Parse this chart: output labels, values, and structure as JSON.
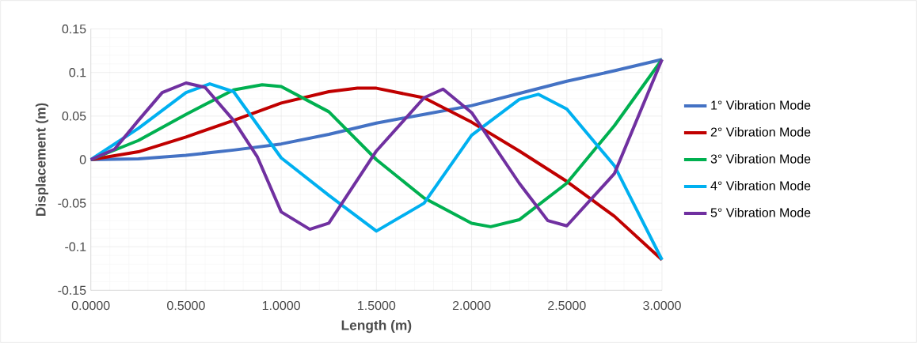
{
  "chart_data": {
    "type": "line",
    "xlabel": "Length (m)",
    "ylabel": "Displacement (m)",
    "xlim": [
      0,
      3
    ],
    "ylim": [
      -0.15,
      0.15
    ],
    "xticks": [
      {
        "value": 0,
        "label": "0.0000"
      },
      {
        "value": 0.5,
        "label": "0.5000"
      },
      {
        "value": 1,
        "label": "1.0000"
      },
      {
        "value": 1.5,
        "label": "1.5000"
      },
      {
        "value": 2,
        "label": "2.0000"
      },
      {
        "value": 2.5,
        "label": "2.5000"
      },
      {
        "value": 3,
        "label": "3.0000"
      }
    ],
    "yticks": [
      -0.15,
      -0.1,
      -0.05,
      0,
      0.05,
      0.1,
      0.15
    ],
    "grid": true,
    "legend": "right",
    "marker": "none",
    "line_style": "solid",
    "series": [
      {
        "name": "1° Vibration Mode",
        "color": "#4472c4",
        "x": [
          0,
          0.25,
          0.5,
          0.75,
          1,
          1.25,
          1.5,
          1.75,
          2,
          2.25,
          2.5,
          2.75,
          3
        ],
        "values": [
          0,
          0.001,
          0.005,
          0.011,
          0.018,
          0.029,
          0.042,
          0.052,
          0.062,
          0.076,
          0.09,
          0.102,
          0.115
        ]
      },
      {
        "name": "2° Vibration Mode",
        "color": "#c00000",
        "x": [
          0,
          0.25,
          0.5,
          0.75,
          1,
          1.25,
          1.4,
          1.5,
          1.75,
          2,
          2.25,
          2.5,
          2.75,
          3
        ],
        "values": [
          0,
          0.009,
          0.026,
          0.045,
          0.065,
          0.078,
          0.082,
          0.082,
          0.071,
          0.043,
          0.01,
          -0.025,
          -0.065,
          -0.115
        ]
      },
      {
        "name": "3° Vibration Mode",
        "color": "#00b050",
        "x": [
          0,
          0.25,
          0.5,
          0.75,
          0.9,
          1,
          1.25,
          1.5,
          1.75,
          2,
          2.1,
          2.25,
          2.5,
          2.75,
          3
        ],
        "values": [
          0,
          0.022,
          0.052,
          0.08,
          0.086,
          0.084,
          0.055,
          0,
          -0.044,
          -0.073,
          -0.077,
          -0.069,
          -0.027,
          0.039,
          0.115
        ]
      },
      {
        "name": "4° Vibration Mode",
        "color": "#00b0f0",
        "x": [
          0,
          0.25,
          0.5,
          0.625,
          0.75,
          1,
          1.25,
          1.5,
          1.75,
          2,
          2.25,
          2.35,
          2.5,
          2.75,
          3
        ],
        "values": [
          0,
          0.036,
          0.077,
          0.087,
          0.078,
          0.002,
          -0.041,
          -0.082,
          -0.05,
          0.028,
          0.069,
          0.075,
          0.058,
          -0.007,
          -0.115
        ]
      },
      {
        "name": "5° Vibration Mode",
        "color": "#7030a0",
        "x": [
          0,
          0.125,
          0.25,
          0.375,
          0.5,
          0.6,
          0.75,
          0.875,
          1,
          1.15,
          1.25,
          1.5,
          1.75,
          1.85,
          2,
          2.25,
          2.4,
          2.5,
          2.75,
          3
        ],
        "values": [
          0,
          0.012,
          0.045,
          0.077,
          0.088,
          0.083,
          0.045,
          0.003,
          -0.06,
          -0.08,
          -0.073,
          0.01,
          0.071,
          0.081,
          0.054,
          -0.027,
          -0.07,
          -0.076,
          -0.016,
          0.115
        ]
      }
    ]
  }
}
